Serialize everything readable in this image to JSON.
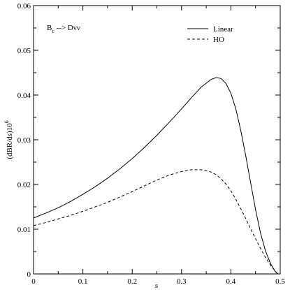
{
  "chart_data": {
    "type": "line",
    "title": "",
    "annotation": {
      "main": "B",
      "sub": "c",
      "rest": " --> Dνν"
    },
    "xlabel": "s",
    "ylabel": {
      "main": "(dBR/ds)10",
      "sup": "6"
    },
    "xlim": [
      0,
      0.5
    ],
    "ylim": [
      0,
      0.06
    ],
    "x_ticks": [
      0,
      0.1,
      0.2,
      0.3,
      0.4,
      0.5
    ],
    "x_tick_labels": [
      "0",
      "0.1",
      "0.2",
      "0.3",
      "0.4",
      "0.5"
    ],
    "y_ticks": [
      0,
      0.01,
      0.02,
      0.03,
      0.04,
      0.05,
      0.06
    ],
    "y_tick_labels": [
      "0",
      "0.01",
      "0.02",
      "0.03",
      "0.04",
      "0.05",
      "0.06"
    ],
    "grid": false,
    "legend_position": "top-right",
    "series": [
      {
        "name": "Linear",
        "style": "solid",
        "x": [
          0,
          0.025,
          0.05,
          0.075,
          0.1,
          0.125,
          0.15,
          0.175,
          0.2,
          0.225,
          0.25,
          0.275,
          0.3,
          0.32,
          0.34,
          0.36,
          0.37,
          0.38,
          0.39,
          0.4,
          0.41,
          0.42,
          0.43,
          0.44,
          0.45,
          0.46,
          0.47,
          0.48,
          0.49,
          0.495
        ],
        "y": [
          0.0125,
          0.0136,
          0.0148,
          0.0162,
          0.0178,
          0.0195,
          0.0214,
          0.0235,
          0.0258,
          0.0283,
          0.031,
          0.0339,
          0.0369,
          0.0394,
          0.0418,
          0.0435,
          0.0439,
          0.0437,
          0.0426,
          0.0404,
          0.0369,
          0.0321,
          0.0265,
          0.0204,
          0.0144,
          0.0092,
          0.0052,
          0.0024,
          0.0005,
          0.0
        ]
      },
      {
        "name": "HO",
        "style": "dashed",
        "x": [
          0,
          0.025,
          0.05,
          0.075,
          0.1,
          0.125,
          0.15,
          0.175,
          0.2,
          0.225,
          0.25,
          0.275,
          0.3,
          0.32,
          0.34,
          0.36,
          0.37,
          0.38,
          0.39,
          0.4,
          0.41,
          0.42,
          0.43,
          0.44,
          0.45,
          0.46,
          0.47,
          0.48,
          0.49,
          0.495
        ],
        "y": [
          0.0108,
          0.0115,
          0.0123,
          0.0131,
          0.014,
          0.015,
          0.016,
          0.0172,
          0.0184,
          0.0197,
          0.021,
          0.0221,
          0.0229,
          0.0233,
          0.0233,
          0.0228,
          0.0222,
          0.0213,
          0.0201,
          0.0186,
          0.0167,
          0.0146,
          0.0124,
          0.0101,
          0.0079,
          0.0057,
          0.0037,
          0.002,
          0.0006,
          0.0
        ]
      }
    ]
  }
}
